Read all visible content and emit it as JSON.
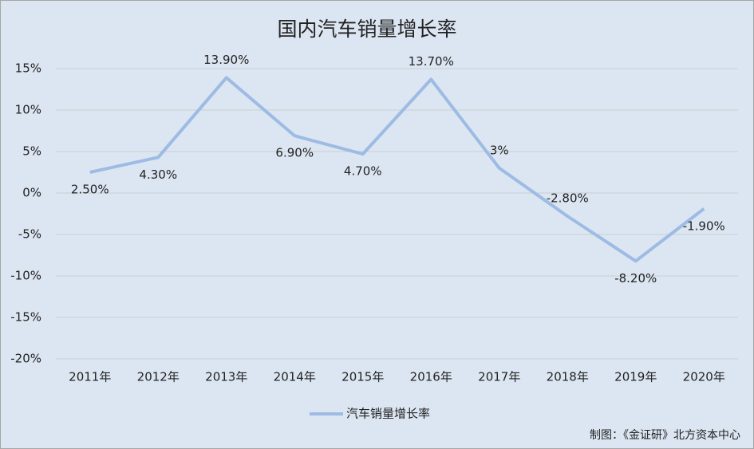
{
  "chart_data": {
    "type": "line",
    "title": "国内汽车销量增长率",
    "categories": [
      "2011年",
      "2012年",
      "2013年",
      "2014年",
      "2015年",
      "2016年",
      "2017年",
      "2018年",
      "2019年",
      "2020年"
    ],
    "series": [
      {
        "name": "汽车销量增长率",
        "color": "#9dbbe3",
        "values": [
          2.5,
          4.3,
          13.9,
          6.9,
          4.7,
          13.7,
          3,
          -2.8,
          -8.2,
          -1.9
        ],
        "value_labels": [
          "2.50%",
          "4.30%",
          "13.90%",
          "6.90%",
          "4.70%",
          "13.70%",
          "3%",
          "-2.80%",
          "-8.20%",
          "-1.90%"
        ]
      }
    ],
    "ylim": [
      -20,
      15
    ],
    "yticks": [
      {
        "value": -20,
        "label": "-20%"
      },
      {
        "value": -15,
        "label": "-15%"
      },
      {
        "value": -10,
        "label": "-10%"
      },
      {
        "value": -5,
        "label": "-5%"
      },
      {
        "value": 0,
        "label": "0%"
      },
      {
        "value": 5,
        "label": "5%"
      },
      {
        "value": 10,
        "label": "10%"
      },
      {
        "value": 15,
        "label": "15%"
      }
    ],
    "grid": true,
    "legend": "bottom",
    "source": "制图：《金证研》北方资本中心"
  }
}
